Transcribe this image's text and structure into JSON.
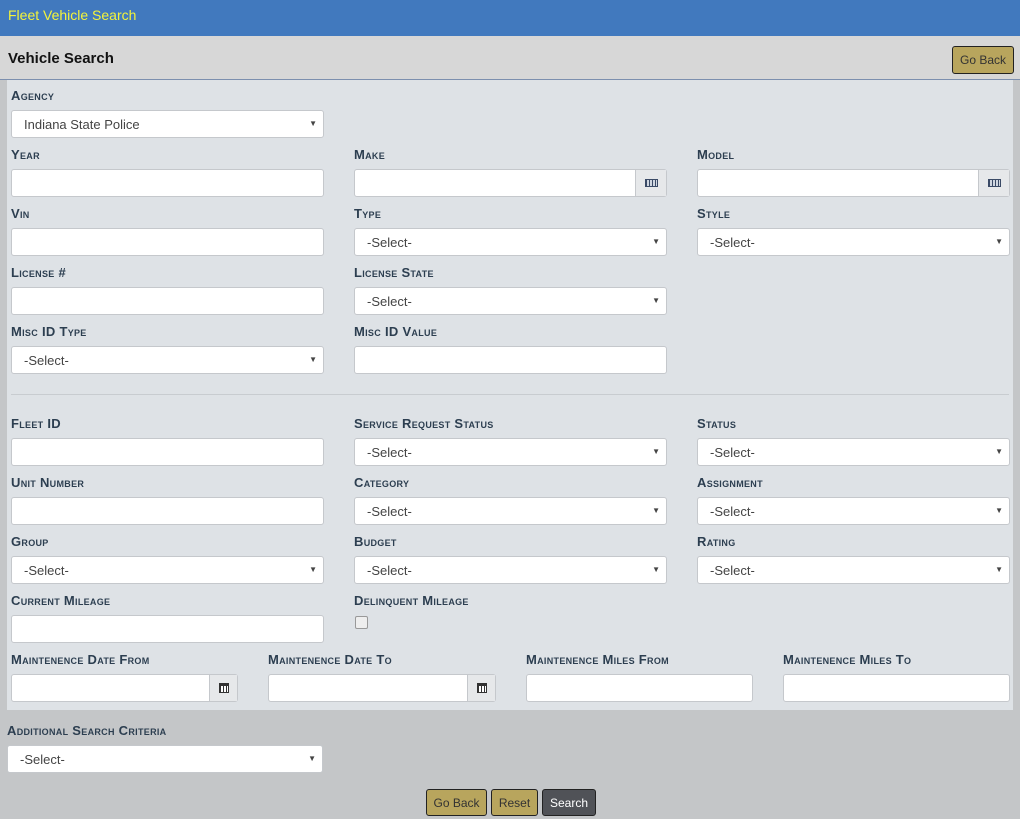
{
  "app_title": "Fleet Vehicle Search",
  "page_title": "Vehicle Search",
  "buttons": {
    "go_back": "Go Back",
    "reset": "Reset",
    "search": "Search"
  },
  "colors": {
    "topbar": "#4179be",
    "title_text": "#f4f43a",
    "gold_button": "#b8a55d",
    "dark_button": "#505257"
  },
  "fields": {
    "agency": {
      "label": "Agency",
      "value": "Indiana State Police"
    },
    "year": {
      "label": "Year",
      "value": ""
    },
    "make": {
      "label": "Make",
      "value": "",
      "icon": "keyboard-icon"
    },
    "model": {
      "label": "Model",
      "value": "",
      "icon": "keyboard-icon"
    },
    "vin": {
      "label": "Vin",
      "value": ""
    },
    "type": {
      "label": "Type",
      "value": "-Select-"
    },
    "style": {
      "label": "Style",
      "value": "-Select-"
    },
    "license": {
      "label": "License #",
      "value": ""
    },
    "license_state": {
      "label": "License State",
      "value": "-Select-"
    },
    "misc_id_type": {
      "label": "Misc ID Type",
      "value": "-Select-"
    },
    "misc_id_value": {
      "label": "Misc ID Value",
      "value": ""
    },
    "fleet_id": {
      "label": "Fleet ID",
      "value": ""
    },
    "service_request_status": {
      "label": "Service Request Status",
      "value": "-Select-"
    },
    "status": {
      "label": "Status",
      "value": "-Select-"
    },
    "unit_number": {
      "label": "Unit Number",
      "value": ""
    },
    "category": {
      "label": "Category",
      "value": "-Select-"
    },
    "assignment": {
      "label": "Assignment",
      "value": "-Select-"
    },
    "group": {
      "label": "Group",
      "value": "-Select-"
    },
    "budget": {
      "label": "Budget",
      "value": "-Select-"
    },
    "rating": {
      "label": "Rating",
      "value": "-Select-"
    },
    "current_mileage": {
      "label": "Current Mileage",
      "value": ""
    },
    "delinquent_mileage": {
      "label": "Delinquent Mileage",
      "checked": false
    },
    "maint_date_from": {
      "label": "Maintenence Date From",
      "value": "",
      "icon": "calendar-icon"
    },
    "maint_date_to": {
      "label": "Maintenence Date To",
      "value": "",
      "icon": "calendar-icon"
    },
    "maint_miles_from": {
      "label": "Maintenence Miles From",
      "value": ""
    },
    "maint_miles_to": {
      "label": "Maintenence Miles To",
      "value": ""
    },
    "additional": {
      "label": "Additional Search Criteria",
      "value": "-Select-"
    }
  }
}
